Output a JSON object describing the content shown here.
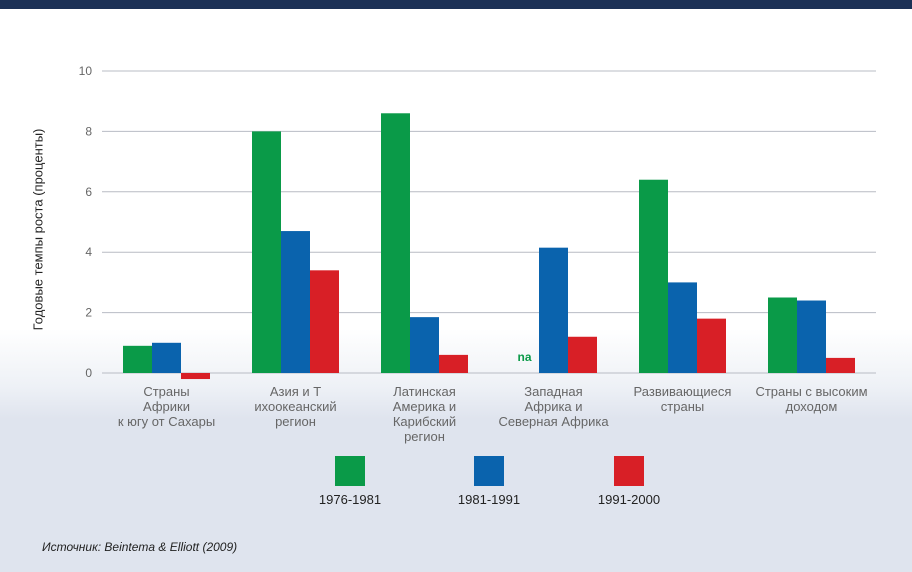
{
  "chart_data": {
    "type": "bar",
    "ylabel": "Годовые темпы роста (проценты)",
    "ylim": [
      0,
      10
    ],
    "yticks": [
      "0",
      "2",
      "4",
      "6",
      "8",
      "10"
    ],
    "grid": true,
    "legend_position": "bottom",
    "categories": [
      [
        "Страны",
        "Африки",
        "к югу от Сахары"
      ],
      [
        "Азия и Т",
        "ихоокеанский",
        "регион"
      ],
      [
        "Латинская",
        "Америка и",
        "Карибский",
        "регион"
      ],
      [
        "Западная",
        "Африка и",
        "Северная Африка"
      ],
      [
        "Развивающиеся",
        "страны"
      ],
      [
        "Страны с высоким",
        "доходом"
      ]
    ],
    "series": [
      {
        "name": "1976-1981",
        "color": "#0a9a48",
        "values": [
          0.9,
          8.0,
          8.6,
          null,
          6.4,
          2.5
        ]
      },
      {
        "name": "1981-1991",
        "color": "#0a63ad",
        "values": [
          1.0,
          4.7,
          1.85,
          4.15,
          3.0,
          2.4
        ]
      },
      {
        "name": "1991-2000",
        "color": "#d81f26",
        "values": [
          -0.2,
          3.4,
          0.6,
          1.2,
          1.8,
          0.5
        ]
      }
    ],
    "annotations": [
      {
        "text": "na",
        "category_index": 3,
        "series_index": 0,
        "color": "#0a9a48"
      }
    ]
  },
  "legend": [
    {
      "label": "1976-1981",
      "color": "#0a9a48"
    },
    {
      "label": "1981-1991",
      "color": "#0a63ad"
    },
    {
      "label": "1991-2000",
      "color": "#d81f26"
    }
  ],
  "source": "Источник: Beintema & Elliott (2009)"
}
